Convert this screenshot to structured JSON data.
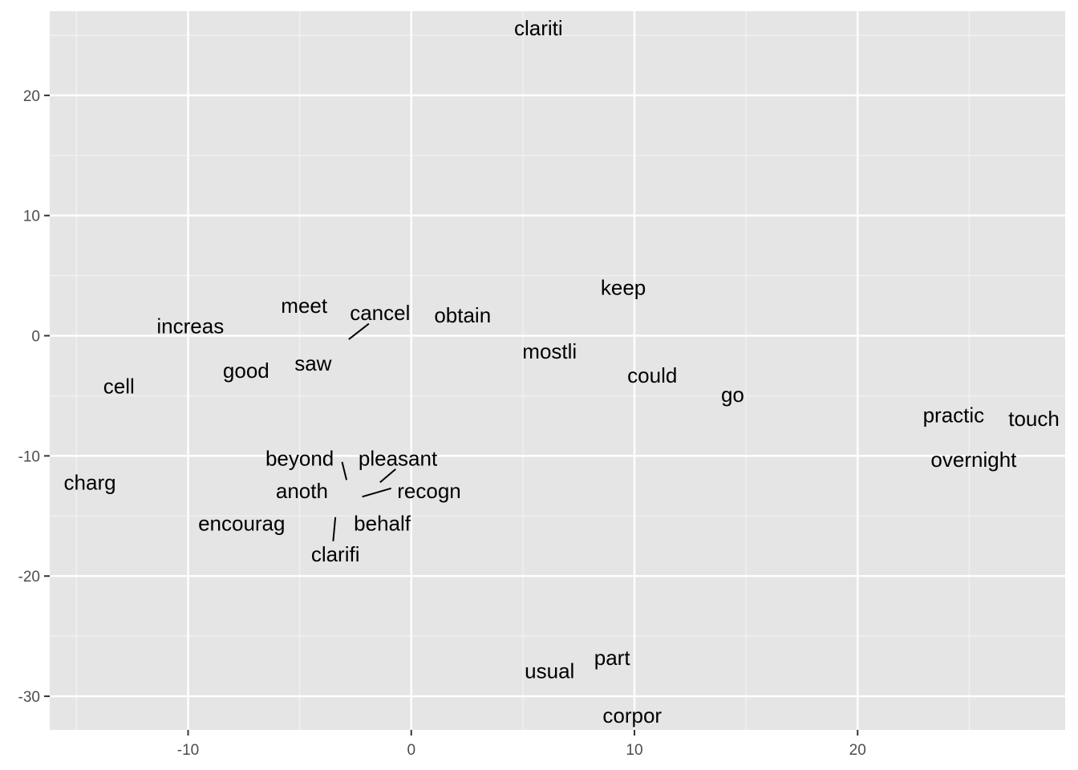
{
  "chart_data": {
    "type": "scatter",
    "title": "",
    "xlabel": "",
    "ylabel": "",
    "xlim": [
      -16.2,
      29.3
    ],
    "ylim": [
      -32.8,
      27.0
    ],
    "grid": true,
    "x_ticks": [
      -10,
      0,
      10,
      20
    ],
    "y_ticks": [
      -30,
      -20,
      -10,
      0,
      10,
      20
    ],
    "x_tick_labels": [
      "-10",
      "0",
      "10",
      "20"
    ],
    "y_tick_labels": [
      "-30",
      "-20",
      "-10",
      "0",
      "10",
      "20"
    ],
    "points": [
      {
        "label": "clariti",
        "x": 5.7,
        "y": 25.6
      },
      {
        "label": "keep",
        "x": 9.5,
        "y": 4.0
      },
      {
        "label": "meet",
        "x": -4.8,
        "y": 2.5
      },
      {
        "label": "cancel",
        "x": -1.4,
        "y": 1.9
      },
      {
        "label": "obtain",
        "x": 2.3,
        "y": 1.7
      },
      {
        "label": "increas",
        "x": -9.9,
        "y": 0.8
      },
      {
        "label": "mostli",
        "x": 6.2,
        "y": -1.3
      },
      {
        "label": "saw",
        "x": -4.4,
        "y": -2.3
      },
      {
        "label": "good",
        "x": -7.4,
        "y": -2.9
      },
      {
        "label": "could",
        "x": 10.8,
        "y": -3.3
      },
      {
        "label": "cell",
        "x": -13.1,
        "y": -4.2
      },
      {
        "label": "go",
        "x": 14.4,
        "y": -4.9
      },
      {
        "label": "practic",
        "x": 24.3,
        "y": -6.6
      },
      {
        "label": "touch",
        "x": 27.9,
        "y": -6.9
      },
      {
        "label": "beyond",
        "x": -5.0,
        "y": -10.2
      },
      {
        "label": "pleasant",
        "x": -0.6,
        "y": -10.2
      },
      {
        "label": "overnight",
        "x": 25.2,
        "y": -10.3
      },
      {
        "label": "charg",
        "x": -14.4,
        "y": -12.2
      },
      {
        "label": "anoth",
        "x": -4.9,
        "y": -12.9
      },
      {
        "label": "recogn",
        "x": 0.8,
        "y": -12.9
      },
      {
        "label": "encourag",
        "x": -7.6,
        "y": -15.6
      },
      {
        "label": "behalf",
        "x": -1.3,
        "y": -15.6
      },
      {
        "label": "clarifi",
        "x": -3.4,
        "y": -18.2
      },
      {
        "label": "part",
        "x": 9.0,
        "y": -26.8
      },
      {
        "label": "usual",
        "x": 6.2,
        "y": -27.9
      },
      {
        "label": "corpor",
        "x": 9.9,
        "y": -31.6
      }
    ],
    "leader_lines": [
      {
        "label": "cancel",
        "from": [
          -1.9,
          1.0
        ],
        "to": [
          -2.8,
          -0.3
        ]
      },
      {
        "label": "beyond",
        "from": [
          -3.1,
          -10.5
        ],
        "to": [
          -2.9,
          -12.0
        ]
      },
      {
        "label": "pleasant",
        "from": [
          -0.7,
          -11.1
        ],
        "to": [
          -1.4,
          -12.2
        ]
      },
      {
        "label": "recogn",
        "from": [
          -0.9,
          -12.7
        ],
        "to": [
          -2.2,
          -13.4
        ]
      },
      {
        "label": "clarifi",
        "from": [
          -3.4,
          -15.1
        ],
        "to": [
          -3.5,
          -17.1
        ]
      }
    ]
  }
}
